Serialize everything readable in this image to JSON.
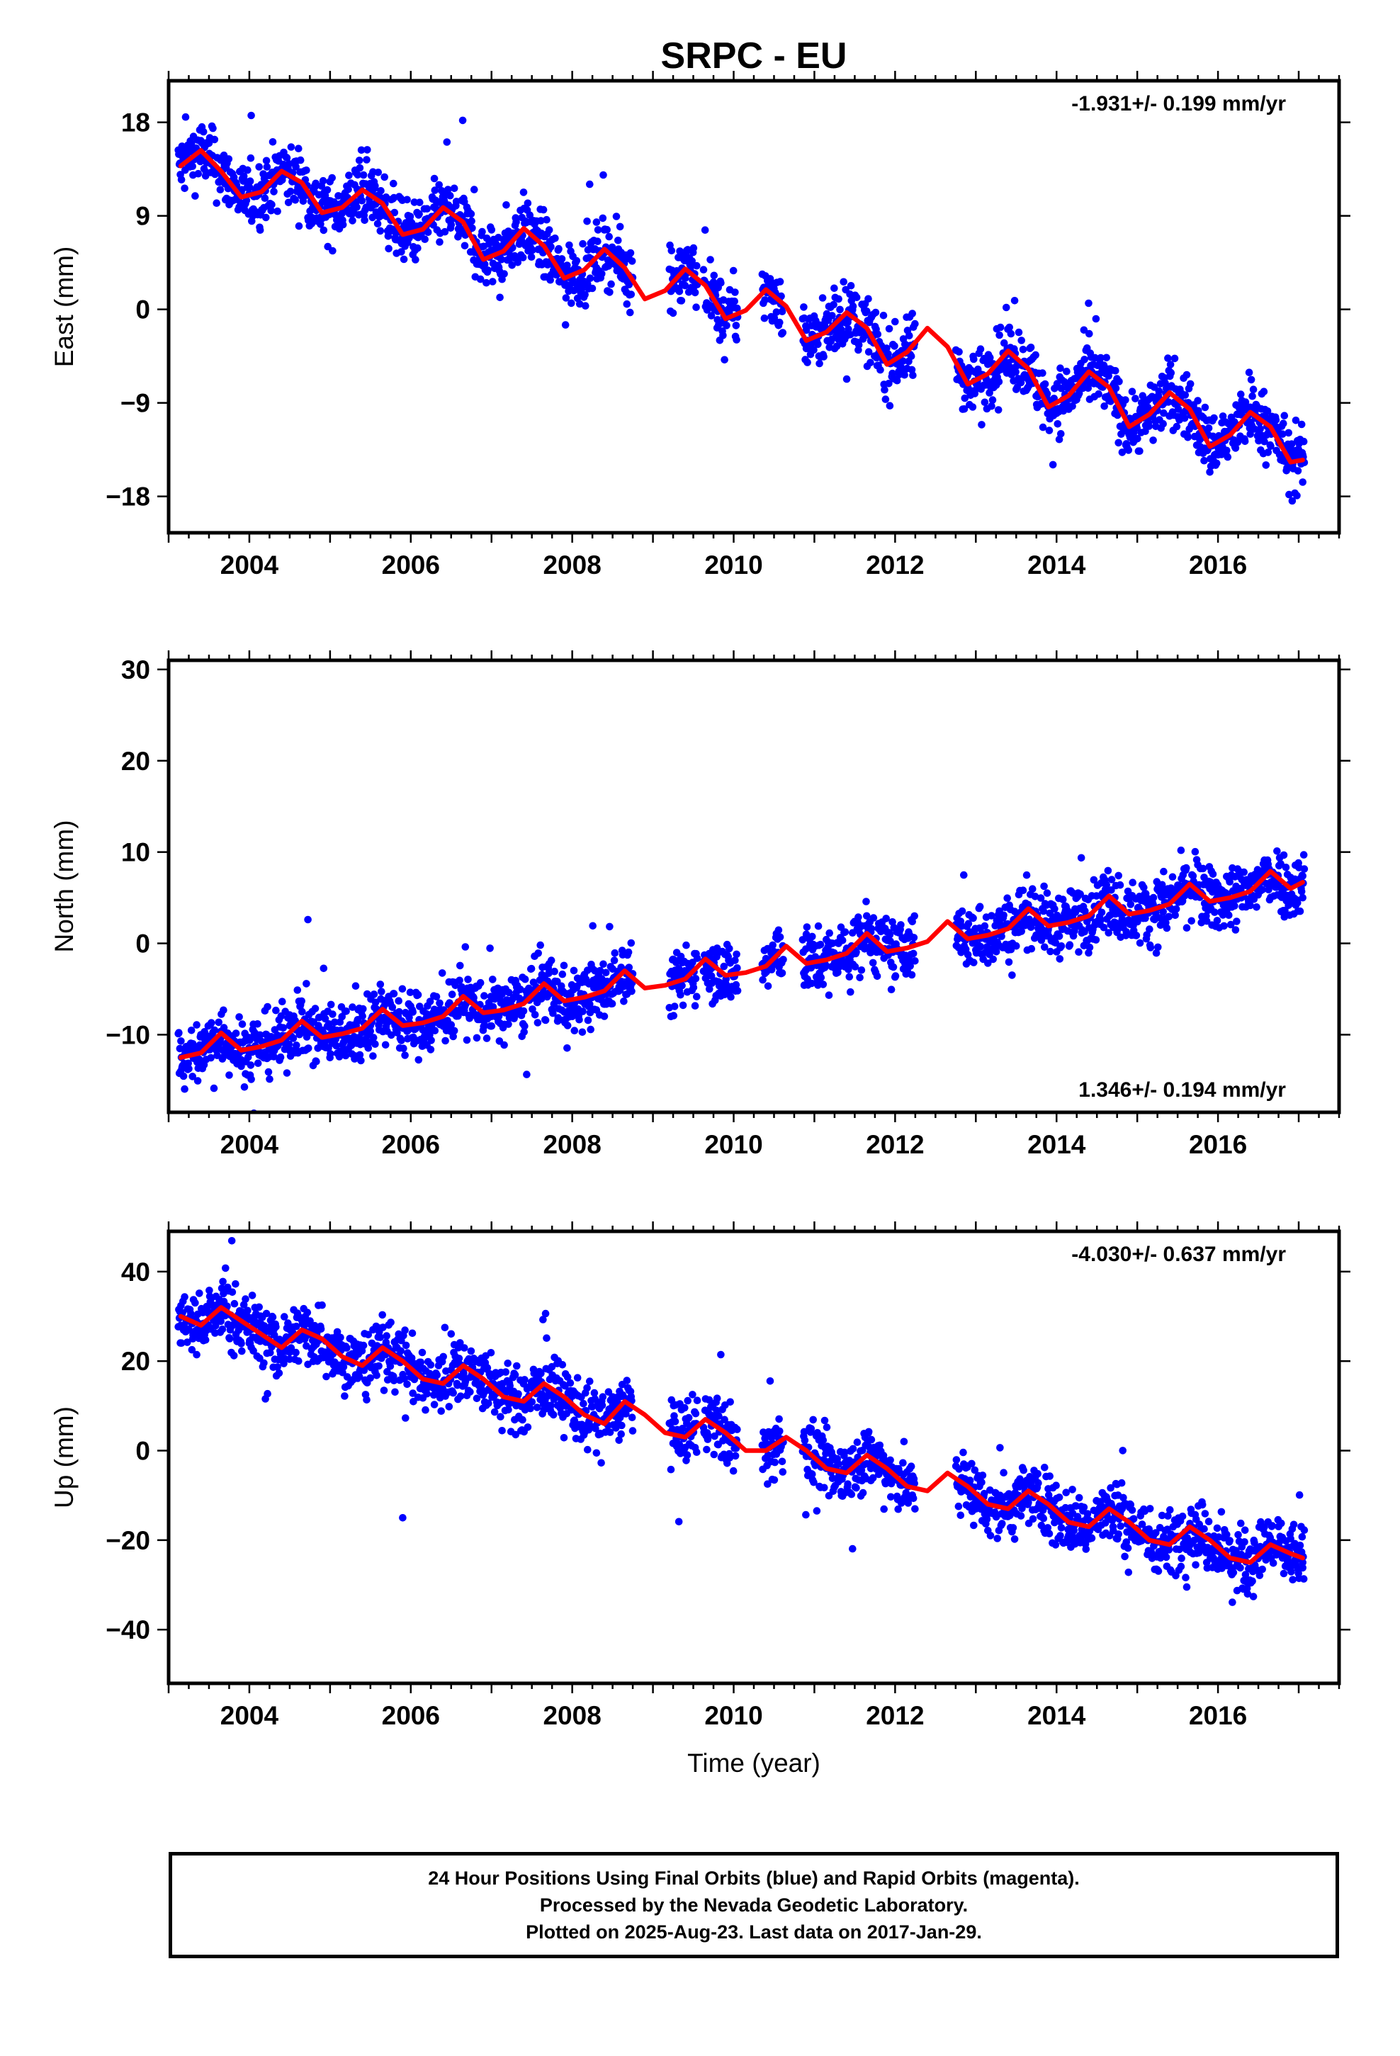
{
  "title": "SRPC - EU",
  "chart_data": [
    {
      "type": "scatter",
      "panel": "east",
      "ylabel": "East (mm)",
      "ylim": [
        -21.5,
        22
      ],
      "xlim": [
        2003.0,
        2017.5
      ],
      "yticks": [
        -18,
        -9,
        0,
        9,
        18
      ],
      "ytick_labels": [
        "−18",
        "−9",
        "0",
        "9",
        "18"
      ],
      "xticks": [
        2004,
        2006,
        2008,
        2010,
        2012,
        2014,
        2016
      ],
      "rate_label": "-1.931+/- 0.199 mm/yr",
      "rate_label_position": "top-right",
      "points_color": "#0000ff",
      "model_color": "#ff0000",
      "series": [
        {
          "type": "scatter",
          "x": [
            2003.15,
            2003.5,
            2003.9,
            2004.3,
            2004.7,
            2005.1,
            2005.5,
            2005.9,
            2006.3,
            2006.7,
            2007.1,
            2007.5,
            2007.9,
            2008.3,
            2008.7,
            2009.4,
            2009.8,
            2010.5,
            2010.9,
            2011.3,
            2011.7,
            2012.1,
            2012.8,
            2013.2,
            2013.6,
            2014.0,
            2014.4,
            2014.8,
            2015.2,
            2015.6,
            2016.0,
            2016.4,
            2016.8,
            2017.05
          ],
          "y": [
            14,
            16,
            10,
            12,
            11,
            9,
            11,
            7,
            9,
            8,
            5,
            7,
            3,
            4,
            5,
            3,
            -1,
            2,
            -2,
            1,
            -3,
            -4,
            -5,
            -6,
            -5,
            -10,
            -7,
            -12,
            -10,
            -9,
            -14,
            -12,
            -12,
            -14
          ]
        },
        {
          "type": "line",
          "x": [
            2003.15,
            2003.4,
            2003.65,
            2003.9,
            2004.15,
            2004.4,
            2004.65,
            2004.9,
            2005.15,
            2005.4,
            2005.65,
            2005.9,
            2006.15,
            2006.4,
            2006.65,
            2006.9,
            2007.15,
            2007.4,
            2007.65,
            2007.9,
            2008.15,
            2008.4,
            2008.65,
            2008.9,
            2009.15,
            2009.4,
            2009.65,
            2009.9,
            2010.15,
            2010.4,
            2010.65,
            2010.9,
            2011.15,
            2011.4,
            2011.65,
            2011.9,
            2012.15,
            2012.4,
            2012.65,
            2012.9,
            2013.15,
            2013.4,
            2013.65,
            2013.9,
            2014.15,
            2014.4,
            2014.65,
            2014.9,
            2015.15,
            2015.4,
            2015.65,
            2015.9,
            2016.15,
            2016.4,
            2016.65,
            2016.9,
            2017.05
          ],
          "y": [
            13.8,
            15.3,
            13.3,
            10.8,
            11.3,
            13.3,
            12.2,
            9.3,
            9.8,
            11.5,
            10.2,
            7.2,
            7.7,
            9.8,
            8.4,
            4.8,
            5.6,
            7.8,
            6.1,
            3,
            3.8,
            5.8,
            4,
            1,
            1.8,
            3.9,
            2.3,
            -0.9,
            -0.1,
            1.9,
            0.3,
            -3,
            -2.2,
            -0.3,
            -1.8,
            -5.3,
            -4.1,
            -1.8,
            -3.6,
            -7.2,
            -6.2,
            -4,
            -5.7,
            -9.4,
            -8.3,
            -6,
            -7.5,
            -11.3,
            -10.1,
            -8,
            -9.6,
            -13.2,
            -12.1,
            -9.9,
            -11.3,
            -14.7,
            -14.5
          ]
        }
      ]
    },
    {
      "type": "scatter",
      "panel": "north",
      "ylabel": "North (mm)",
      "ylim": [
        -18.5,
        31
      ],
      "xlim": [
        2003.0,
        2017.5
      ],
      "yticks": [
        -10,
        0,
        10,
        20,
        30
      ],
      "ytick_labels": [
        "−10",
        "0",
        "10",
        "20",
        "30"
      ],
      "xticks": [
        2004,
        2006,
        2008,
        2010,
        2012,
        2014,
        2016
      ],
      "rate_label": "1.346+/- 0.194 mm/yr",
      "rate_label_position": "bottom-right",
      "points_color": "#0000ff",
      "model_color": "#ff0000",
      "series": [
        {
          "type": "scatter",
          "x": [
            2003.15,
            2003.3,
            2004.0,
            2004.5,
            2005.0,
            2005.5,
            2006.0,
            2006.5,
            2007.0,
            2007.5,
            2008.0,
            2008.5,
            2009.3,
            2009.7,
            2010.5,
            2010.9,
            2011.3,
            2011.7,
            2012.9,
            2013.3,
            2013.8,
            2014.2,
            2014.7,
            2015.2,
            2015.6,
            2016.0,
            2016.4,
            2016.8,
            2017.05
          ],
          "y": [
            -14,
            -11,
            -12,
            -9,
            -10,
            -9,
            -9,
            -7,
            -8,
            -6,
            -8,
            -4,
            -3,
            -5,
            -1,
            1,
            0,
            -1,
            1,
            2,
            2,
            3,
            4,
            5,
            6,
            5,
            6,
            6,
            5
          ]
        },
        {
          "type": "line",
          "x": [
            2003.15,
            2003.4,
            2003.65,
            2003.9,
            2004.15,
            2004.4,
            2004.65,
            2004.9,
            2005.15,
            2005.4,
            2005.65,
            2005.9,
            2006.15,
            2006.4,
            2006.65,
            2006.9,
            2007.15,
            2007.4,
            2007.65,
            2007.9,
            2008.15,
            2008.4,
            2008.65,
            2008.9,
            2009.15,
            2009.4,
            2009.65,
            2009.9,
            2010.15,
            2010.4,
            2010.65,
            2010.9,
            2011.15,
            2011.4,
            2011.65,
            2011.9,
            2012.15,
            2012.4,
            2012.65,
            2012.9,
            2013.15,
            2013.4,
            2013.65,
            2013.9,
            2014.15,
            2014.4,
            2014.65,
            2014.9,
            2015.15,
            2015.4,
            2015.65,
            2015.9,
            2016.15,
            2016.4,
            2016.65,
            2016.9,
            2017.05
          ],
          "y": [
            -12.5,
            -12,
            -9.8,
            -11.7,
            -11.3,
            -10.6,
            -8.5,
            -10.3,
            -9.9,
            -9.3,
            -7.2,
            -9,
            -8.7,
            -8,
            -5.8,
            -7.6,
            -7.3,
            -6.6,
            -4.4,
            -6.3,
            -5.9,
            -5.2,
            -3,
            -4.9,
            -4.6,
            -3.9,
            -1.7,
            -3.5,
            -3.2,
            -2.5,
            -0.3,
            -2.2,
            -1.8,
            -1.1,
            1.1,
            -0.9,
            -0.5,
            0.2,
            2.4,
            0.5,
            0.9,
            1.6,
            3.8,
            1.9,
            2.3,
            3,
            5.2,
            3.2,
            3.6,
            4.3,
            6.5,
            4.6,
            5,
            5.7,
            7.9,
            6,
            6.7
          ]
        }
      ]
    },
    {
      "type": "scatter",
      "panel": "up",
      "ylabel": "Up (mm)",
      "ylim": [
        -52,
        49
      ],
      "xlim": [
        2003.0,
        2017.5
      ],
      "yticks": [
        -40,
        -20,
        0,
        20,
        40
      ],
      "ytick_labels": [
        "−40",
        "−20",
        "0",
        "20",
        "40"
      ],
      "xticks": [
        2004,
        2006,
        2008,
        2010,
        2012,
        2014,
        2016
      ],
      "xlabel": "Time (year)",
      "rate_label": "-4.030+/- 0.637 mm/yr",
      "rate_label_position": "top-right",
      "points_color": "#0000ff",
      "model_color": "#ff0000",
      "series": [
        {
          "type": "scatter",
          "x": [
            2003.15,
            2003.3,
            2004.0,
            2004.5,
            2005.0,
            2005.5,
            2005.9,
            2006.5,
            2007.0,
            2007.5,
            2008.0,
            2008.5,
            2009.3,
            2009.7,
            2010.5,
            2010.9,
            2011.3,
            2011.7,
            2012.9,
            2013.3,
            2013.8,
            2014.2,
            2014.7,
            2015.2,
            2015.6,
            2016.0,
            2016.4,
            2016.8,
            2017.05
          ],
          "y": [
            28,
            25,
            24,
            22,
            21,
            19,
            -15,
            18,
            15,
            14,
            13,
            12,
            4,
            8,
            1,
            0,
            -3,
            -4,
            -8,
            -10,
            -12,
            -14,
            -17,
            -19,
            -20,
            -21,
            -22,
            -24,
            -25
          ]
        },
        {
          "type": "line",
          "x": [
            2003.15,
            2003.4,
            2003.65,
            2003.9,
            2004.15,
            2004.4,
            2004.65,
            2004.9,
            2005.15,
            2005.4,
            2005.65,
            2005.9,
            2006.15,
            2006.4,
            2006.65,
            2006.9,
            2007.15,
            2007.4,
            2007.65,
            2007.9,
            2008.15,
            2008.4,
            2008.65,
            2008.9,
            2009.15,
            2009.4,
            2009.65,
            2009.9,
            2010.15,
            2010.4,
            2010.65,
            2010.9,
            2011.15,
            2011.4,
            2011.65,
            2011.9,
            2012.15,
            2012.4,
            2012.65,
            2012.9,
            2013.15,
            2013.4,
            2013.65,
            2013.9,
            2014.15,
            2014.4,
            2014.65,
            2014.9,
            2015.15,
            2015.4,
            2015.65,
            2015.9,
            2016.15,
            2016.4,
            2016.65,
            2016.9,
            2017.05
          ],
          "y": [
            30,
            28,
            32,
            29,
            26,
            23,
            27,
            25,
            21,
            19,
            23,
            20,
            16,
            15,
            19,
            16,
            12,
            11,
            15,
            12,
            8,
            6,
            11,
            8,
            4,
            3,
            7,
            4,
            0,
            0,
            3,
            0,
            -4,
            -5,
            -1,
            -4,
            -8,
            -9,
            -5,
            -8,
            -12,
            -13,
            -9,
            -12,
            -16,
            -17,
            -13,
            -16,
            -20,
            -21,
            -17,
            -20,
            -24,
            -25,
            -21,
            -23,
            -24
          ]
        }
      ]
    }
  ],
  "caption": {
    "line1": "24 Hour Positions Using Final Orbits (blue) and Rapid Orbits (magenta).",
    "line2": "Processed by the Nevada Geodetic Laboratory.",
    "line3": "Plotted on 2025-Aug-23. Last data on 2017-Jan-29."
  }
}
